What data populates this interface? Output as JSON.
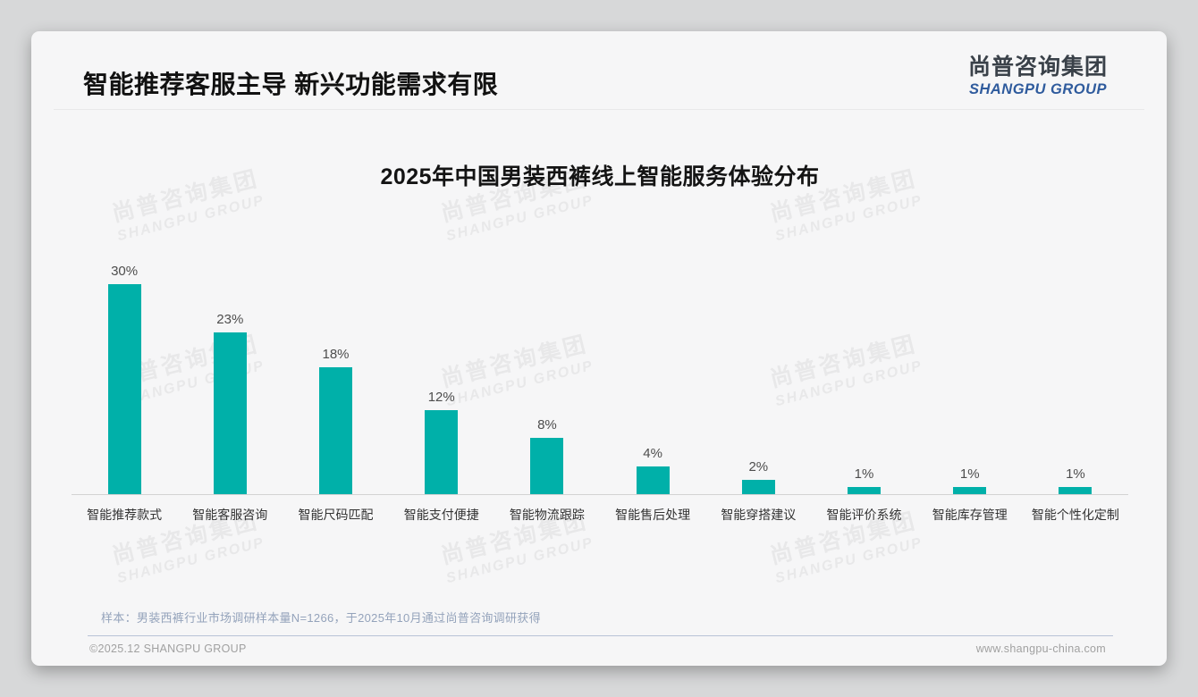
{
  "page": {
    "title": "智能推荐客服主导 新兴功能需求有限",
    "logo": {
      "cn": "尚普咨询集团",
      "en": "SHANGPU GROUP"
    },
    "watermark": {
      "cn": "尚普咨询集团",
      "en": "SHANGPU GROUP"
    },
    "note": "样本：男装西裤行业市场调研样本量N=1266，于2025年10月通过尚普咨询调研获得",
    "footer": {
      "copyright": "©2025.12 SHANGPU GROUP",
      "website": "www.shangpu-china.com"
    },
    "colors": {
      "bar": "#00B0A9",
      "logo_blue": "#2F5B9D",
      "note_text": "#94A3BB",
      "footer_divider": "#B7C3D6",
      "card_bg": "#F6F6F7",
      "page_bg": "#D7D8D9"
    }
  },
  "chart_data": {
    "type": "bar",
    "title": "2025年中国男装西裤线上智能服务体验分布",
    "categories": [
      "智能推荐款式",
      "智能客服咨询",
      "智能尺码匹配",
      "智能支付便捷",
      "智能物流跟踪",
      "智能售后处理",
      "智能穿搭建议",
      "智能评价系统",
      "智能库存管理",
      "智能个性化定制"
    ],
    "values": [
      30,
      23,
      18,
      12,
      8,
      4,
      2,
      1,
      1,
      1
    ],
    "value_labels": [
      "30%",
      "23%",
      "18%",
      "12%",
      "8%",
      "4%",
      "2%",
      "1%",
      "1%",
      "1%"
    ],
    "unit": "%",
    "ylim": [
      0,
      30
    ],
    "grid": false,
    "legend": "none",
    "bar_color": "#00B0A9",
    "xlabel": "",
    "ylabel": ""
  }
}
